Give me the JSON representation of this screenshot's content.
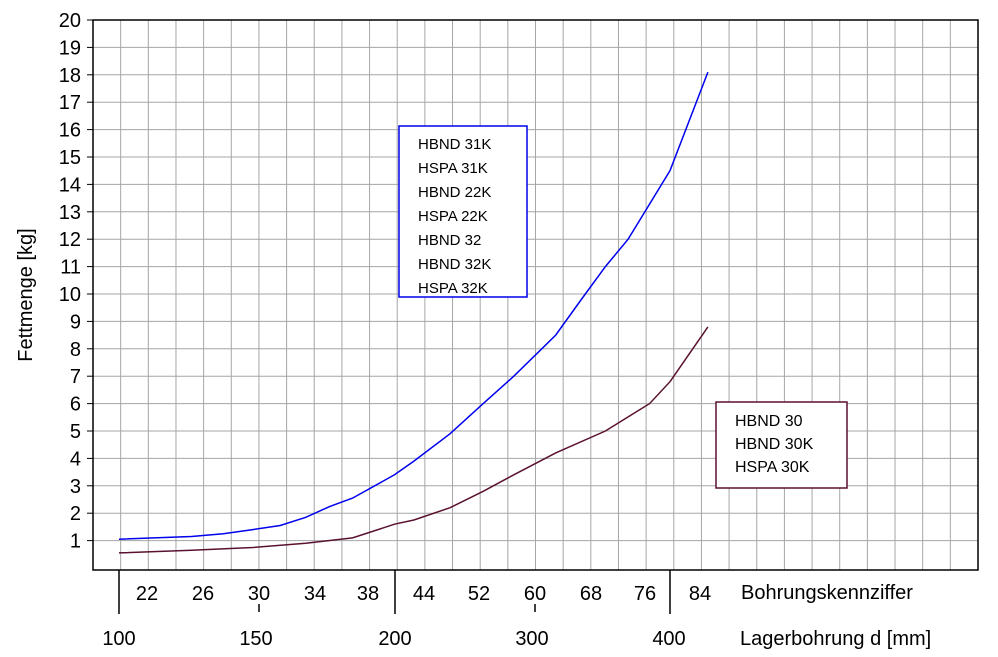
{
  "chart_data": {
    "type": "line",
    "title": "",
    "ylabel": "Fettmenge [kg]",
    "ylim": [
      0,
      20
    ],
    "yticks": [
      "1",
      "2",
      "3",
      "4",
      "5",
      "6",
      "7",
      "8",
      "9",
      "10",
      "11",
      "12",
      "13",
      "14",
      "15",
      "16",
      "17",
      "18",
      "19",
      "20"
    ],
    "x_axis_1": {
      "label": "Bohrungskennziffer",
      "ticks": [
        "22",
        "26",
        "30",
        "34",
        "38",
        "44",
        "52",
        "60",
        "68",
        "76",
        "84"
      ]
    },
    "x_axis_2": {
      "label": "Lagerbohrung d [mm]",
      "ticks": [
        "100",
        "150",
        "200",
        "300",
        "400"
      ]
    },
    "grid": true,
    "series": [
      {
        "legend": [
          "HBND 31K",
          "HSPA 31K",
          "HBND 22K",
          "HSPA 22K",
          "HBND 32",
          "HBND 32K",
          "HSPA 32K"
        ],
        "color": "#0000ee",
        "x": [
          100,
          120,
          130,
          140,
          150,
          160,
          170,
          180,
          200,
          210,
          230,
          250,
          270,
          300,
          320,
          340,
          360,
          400,
          440
        ],
        "y": [
          1.05,
          1.15,
          1.25,
          1.4,
          1.55,
          1.85,
          2.25,
          2.55,
          3.4,
          3.9,
          4.9,
          6.0,
          7.0,
          8.5,
          9.8,
          11.0,
          12.0,
          14.5,
          18.1
        ]
      },
      {
        "legend": [
          "HBND 30",
          "HBND 30K",
          "HSPA 30K"
        ],
        "color": "#5a1130",
        "x": [
          100,
          120,
          140,
          160,
          180,
          200,
          210,
          230,
          250,
          270,
          300,
          340,
          380,
          400,
          440
        ],
        "y": [
          0.55,
          0.65,
          0.75,
          0.9,
          1.1,
          1.6,
          1.75,
          2.2,
          2.8,
          3.4,
          4.2,
          5.0,
          6.0,
          6.8,
          8.8
        ]
      }
    ]
  }
}
